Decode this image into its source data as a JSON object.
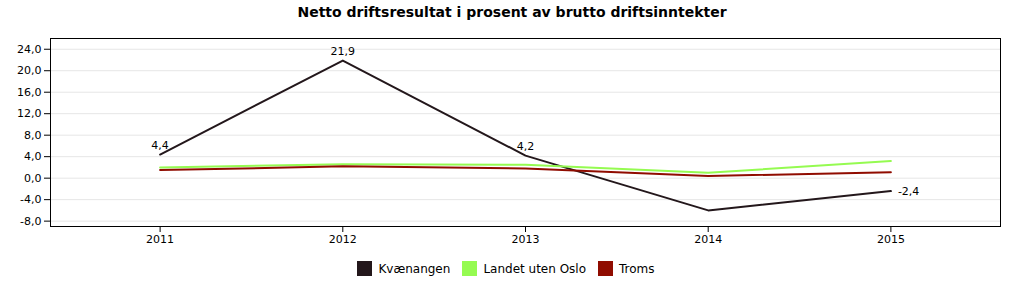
{
  "chart_data": {
    "type": "line",
    "title": "Netto driftsresultat i prosent av brutto driftsinntekter",
    "x": [
      2011,
      2012,
      2013,
      2014,
      2015
    ],
    "xlim": [
      2010.4,
      2015.6
    ],
    "xticks": [
      2011,
      2012,
      2013,
      2014,
      2015
    ],
    "ylim": [
      -9.0,
      26.0
    ],
    "yticks": [
      {
        "value": -8.0,
        "label": "-8,0"
      },
      {
        "value": -4.0,
        "label": "-4,0"
      },
      {
        "value": 0.0,
        "label": "0,0"
      },
      {
        "value": 4.0,
        "label": "4,0"
      },
      {
        "value": 8.0,
        "label": "8,0"
      },
      {
        "value": 12.0,
        "label": "12,0"
      },
      {
        "value": 16.0,
        "label": "16,0"
      },
      {
        "value": 20.0,
        "label": "20,0"
      },
      {
        "value": 24.0,
        "label": "24,0"
      }
    ],
    "grid": true,
    "legend": "bottom",
    "series": [
      {
        "name": "Kvænangen",
        "values": [
          4.4,
          21.9,
          4.2,
          -6.0,
          -2.4
        ]
      },
      {
        "name": "Landet uten Oslo",
        "values": [
          2.0,
          2.6,
          2.5,
          1.0,
          3.2
        ]
      },
      {
        "name": "Troms",
        "values": [
          1.5,
          2.2,
          1.8,
          0.4,
          1.1
        ]
      }
    ],
    "annotations": [
      {
        "text": "4,4",
        "x": 2011,
        "y": 4.4
      },
      {
        "text": "21,9",
        "x": 2012,
        "y": 21.9
      },
      {
        "text": "4,2",
        "x": 2013,
        "y": 4.2
      },
      {
        "text": "-2,4",
        "x": 2015,
        "y": -2.4
      }
    ]
  }
}
